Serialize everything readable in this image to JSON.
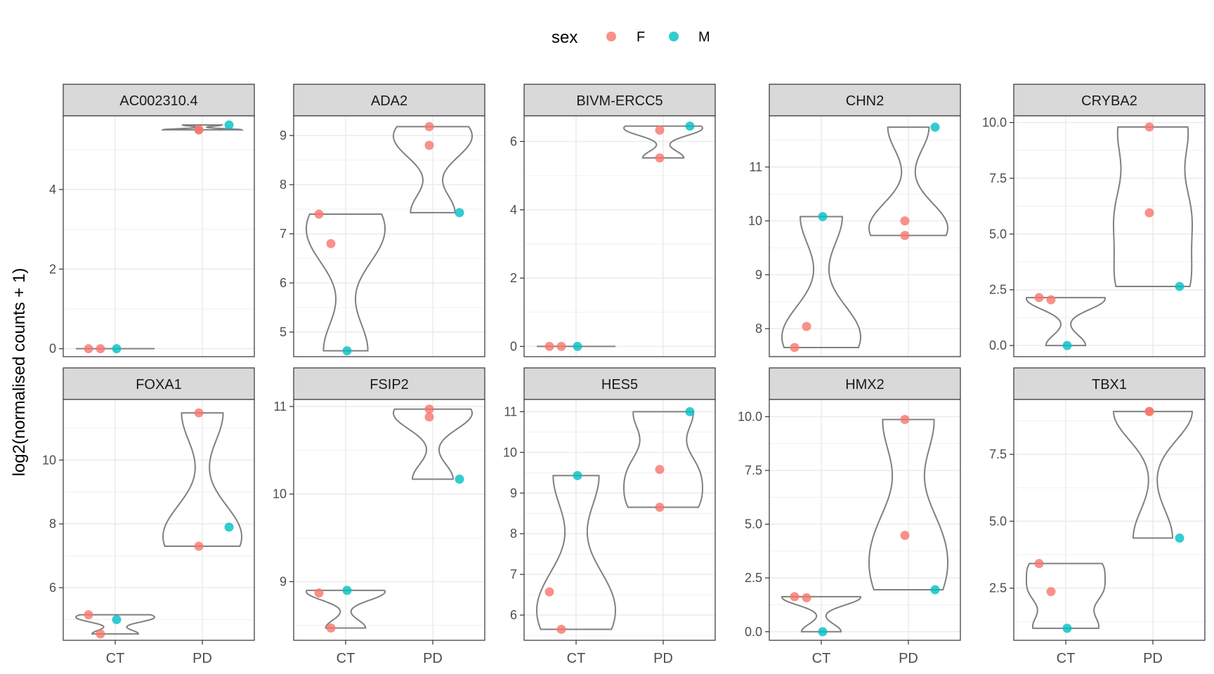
{
  "chart_data": {
    "type": "violin",
    "ylabel": "log2(normalised counts + 1)",
    "xlabel": "",
    "categories": [
      "CT",
      "PD"
    ],
    "legend": {
      "title": "sex",
      "placement": "top",
      "items": [
        {
          "label": "F",
          "color": "#F8766D"
        },
        {
          "label": "M",
          "color": "#00BFC4"
        }
      ]
    },
    "grid": true,
    "facets": [
      {
        "name": "AC002310.4",
        "ylim": [
          -0.2,
          5.85
        ],
        "yticks": [
          0,
          2,
          4
        ],
        "yticklabels": [
          "0",
          "2",
          "4"
        ],
        "points": [
          {
            "group": "CT",
            "sex": "F",
            "y": 0
          },
          {
            "group": "CT",
            "sex": "F",
            "y": 0
          },
          {
            "group": "CT",
            "sex": "M",
            "y": 0
          },
          {
            "group": "PD",
            "sex": "F",
            "y": 5.5
          },
          {
            "group": "PD",
            "sex": "F",
            "y": 5.5
          },
          {
            "group": "PD",
            "sex": "M",
            "y": 5.62
          }
        ]
      },
      {
        "name": "ADA2",
        "ylim": [
          4.5,
          9.4
        ],
        "yticks": [
          5,
          6,
          7,
          8,
          9
        ],
        "yticklabels": [
          "5",
          "6",
          "7",
          "8",
          "9"
        ],
        "points": [
          {
            "group": "CT",
            "sex": "F",
            "y": 7.4
          },
          {
            "group": "CT",
            "sex": "F",
            "y": 6.8
          },
          {
            "group": "CT",
            "sex": "M",
            "y": 4.62
          },
          {
            "group": "PD",
            "sex": "F",
            "y": 9.18
          },
          {
            "group": "PD",
            "sex": "F",
            "y": 8.8
          },
          {
            "group": "PD",
            "sex": "M",
            "y": 7.43
          }
        ]
      },
      {
        "name": "BIVM-ERCC5",
        "ylim": [
          -0.3,
          6.75
        ],
        "yticks": [
          0,
          2,
          4,
          6
        ],
        "yticklabels": [
          "0",
          "2",
          "4",
          "6"
        ],
        "points": [
          {
            "group": "CT",
            "sex": "F",
            "y": 0
          },
          {
            "group": "CT",
            "sex": "F",
            "y": 0
          },
          {
            "group": "CT",
            "sex": "M",
            "y": 0
          },
          {
            "group": "PD",
            "sex": "F",
            "y": 6.33
          },
          {
            "group": "PD",
            "sex": "F",
            "y": 5.52
          },
          {
            "group": "PD",
            "sex": "M",
            "y": 6.45
          }
        ]
      },
      {
        "name": "CHN2",
        "ylim": [
          7.48,
          11.95
        ],
        "yticks": [
          8,
          9,
          10,
          11
        ],
        "yticklabels": [
          "8",
          "9",
          "10",
          "11"
        ],
        "points": [
          {
            "group": "CT",
            "sex": "F",
            "y": 7.65
          },
          {
            "group": "CT",
            "sex": "F",
            "y": 8.04
          },
          {
            "group": "CT",
            "sex": "M",
            "y": 10.08
          },
          {
            "group": "PD",
            "sex": "F",
            "y": 10.0
          },
          {
            "group": "PD",
            "sex": "F",
            "y": 9.73
          },
          {
            "group": "PD",
            "sex": "M",
            "y": 11.74
          }
        ]
      },
      {
        "name": "CRYBA2",
        "ylim": [
          -0.5,
          10.3
        ],
        "yticks": [
          0,
          2.5,
          5,
          7.5,
          10
        ],
        "yticklabels": [
          "0.0",
          "2.5",
          "5.0",
          "7.5",
          "10.0"
        ],
        "points": [
          {
            "group": "CT",
            "sex": "F",
            "y": 2.15
          },
          {
            "group": "CT",
            "sex": "F",
            "y": 2.05
          },
          {
            "group": "CT",
            "sex": "M",
            "y": 0
          },
          {
            "group": "PD",
            "sex": "F",
            "y": 9.8
          },
          {
            "group": "PD",
            "sex": "F",
            "y": 5.95
          },
          {
            "group": "PD",
            "sex": "M",
            "y": 2.65
          }
        ]
      },
      {
        "name": "FOXA1",
        "ylim": [
          4.35,
          11.9
        ],
        "yticks": [
          6,
          8,
          10
        ],
        "yticklabels": [
          "6",
          "8",
          "10"
        ],
        "points": [
          {
            "group": "CT",
            "sex": "F",
            "y": 5.15
          },
          {
            "group": "CT",
            "sex": "F",
            "y": 4.55
          },
          {
            "group": "CT",
            "sex": "M",
            "y": 5.0
          },
          {
            "group": "PD",
            "sex": "F",
            "y": 11.48
          },
          {
            "group": "PD",
            "sex": "F",
            "y": 7.3
          },
          {
            "group": "PD",
            "sex": "M",
            "y": 7.9
          }
        ]
      },
      {
        "name": "FSIP2",
        "ylim": [
          8.33,
          11.08
        ],
        "yticks": [
          9,
          10,
          11
        ],
        "yticklabels": [
          "9",
          "10",
          "11"
        ],
        "points": [
          {
            "group": "CT",
            "sex": "F",
            "y": 8.87
          },
          {
            "group": "CT",
            "sex": "F",
            "y": 8.47
          },
          {
            "group": "CT",
            "sex": "M",
            "y": 8.9
          },
          {
            "group": "PD",
            "sex": "F",
            "y": 10.97
          },
          {
            "group": "PD",
            "sex": "F",
            "y": 10.88
          },
          {
            "group": "PD",
            "sex": "M",
            "y": 10.17
          }
        ]
      },
      {
        "name": "HES5",
        "ylim": [
          5.38,
          11.3
        ],
        "yticks": [
          6,
          7,
          8,
          9,
          10,
          11
        ],
        "yticklabels": [
          "6",
          "7",
          "8",
          "9",
          "10",
          "11"
        ],
        "points": [
          {
            "group": "CT",
            "sex": "F",
            "y": 6.57
          },
          {
            "group": "CT",
            "sex": "F",
            "y": 5.65
          },
          {
            "group": "CT",
            "sex": "M",
            "y": 9.43
          },
          {
            "group": "PD",
            "sex": "F",
            "y": 9.58
          },
          {
            "group": "PD",
            "sex": "F",
            "y": 8.65
          },
          {
            "group": "PD",
            "sex": "M",
            "y": 11.0
          }
        ]
      },
      {
        "name": "HMX2",
        "ylim": [
          -0.4,
          10.8
        ],
        "yticks": [
          0,
          2.5,
          5,
          7.5,
          10
        ],
        "yticklabels": [
          "0.0",
          "2.5",
          "5.0",
          "7.5",
          "10.0"
        ],
        "points": [
          {
            "group": "CT",
            "sex": "F",
            "y": 1.63
          },
          {
            "group": "CT",
            "sex": "F",
            "y": 1.58
          },
          {
            "group": "CT",
            "sex": "M",
            "y": 0
          },
          {
            "group": "PD",
            "sex": "F",
            "y": 9.87
          },
          {
            "group": "PD",
            "sex": "F",
            "y": 4.48
          },
          {
            "group": "PD",
            "sex": "M",
            "y": 1.95
          }
        ]
      },
      {
        "name": "TBX1",
        "ylim": [
          0.55,
          9.55
        ],
        "yticks": [
          2.5,
          5,
          7.5
        ],
        "yticklabels": [
          "2.5",
          "5.0",
          "7.5"
        ],
        "points": [
          {
            "group": "CT",
            "sex": "F",
            "y": 3.42
          },
          {
            "group": "CT",
            "sex": "F",
            "y": 2.37
          },
          {
            "group": "CT",
            "sex": "M",
            "y": 1.0
          },
          {
            "group": "PD",
            "sex": "F",
            "y": 9.1
          },
          {
            "group": "PD",
            "sex": "F",
            "y": 9.1
          },
          {
            "group": "PD",
            "sex": "M",
            "y": 4.37
          }
        ]
      }
    ]
  }
}
